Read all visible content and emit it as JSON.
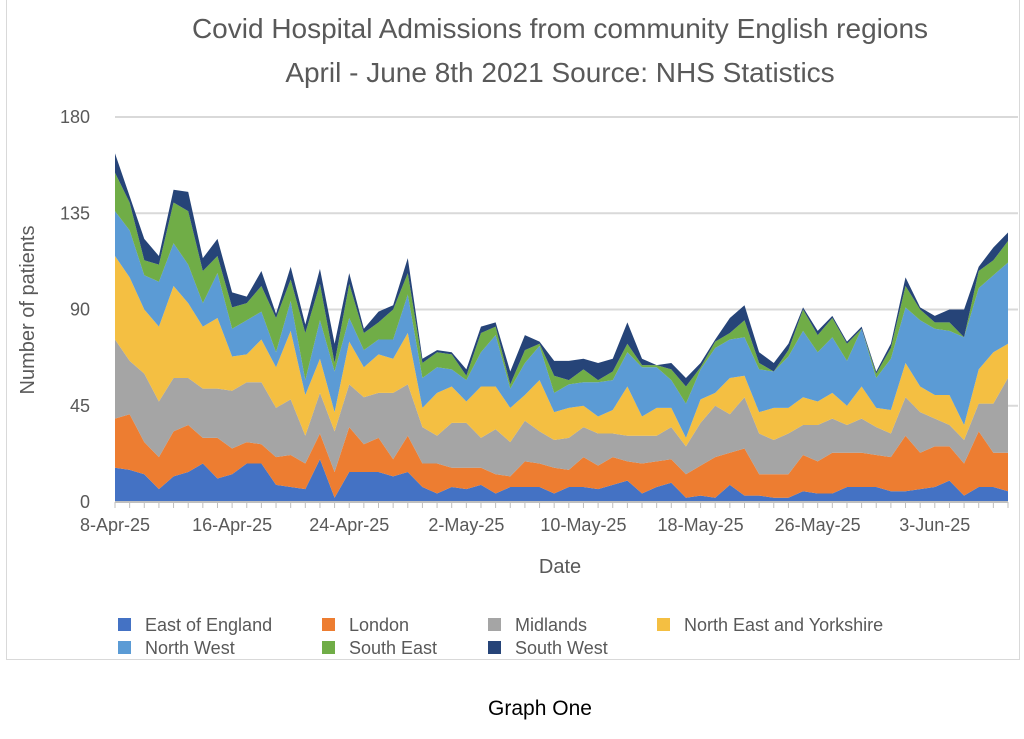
{
  "chart_data": {
    "type": "area",
    "stacked": true,
    "title": [
      "Covid Hospital Admissions from community English regions",
      "April - June 8th 2021 Source: NHS Statistics"
    ],
    "xlabel": "Date",
    "ylabel": "Number of patients",
    "ylim": [
      0,
      180
    ],
    "yticks": [
      0,
      45,
      90,
      135,
      180
    ],
    "grid": true,
    "legend_position": "bottom",
    "x_start": "8-Apr-25",
    "n_points": 62,
    "xtick_labels": [
      "8-Apr-25",
      "16-Apr-25",
      "24-Apr-25",
      "2-May-25",
      "10-May-25",
      "18-May-25",
      "26-May-25",
      "3-Jun-25"
    ],
    "xtick_every": 8,
    "series": [
      {
        "name": "East of England",
        "color": "#4472C4",
        "values": [
          16,
          15,
          13,
          6,
          12,
          14,
          18,
          11,
          13,
          18,
          18,
          8,
          7,
          6,
          20,
          2,
          14,
          14,
          14,
          12,
          14,
          7,
          4,
          7,
          6,
          8,
          4,
          7,
          7,
          7,
          4,
          7,
          7,
          6,
          8,
          10,
          4,
          7,
          9,
          2,
          3,
          2,
          8,
          3,
          3,
          2,
          2,
          5,
          4,
          4,
          7,
          7,
          7,
          5,
          5,
          6,
          7,
          10,
          3,
          7,
          7,
          5
        ]
      },
      {
        "name": "London",
        "color": "#ED7D31",
        "values": [
          23,
          26,
          15,
          15,
          21,
          22,
          12,
          19,
          12,
          10,
          9,
          13,
          15,
          12,
          12,
          12,
          21,
          13,
          16,
          8,
          17,
          11,
          14,
          9,
          10,
          8,
          9,
          5,
          12,
          11,
          12,
          8,
          14,
          11,
          13,
          9,
          14,
          12,
          11,
          11,
          14,
          19,
          15,
          22,
          10,
          11,
          11,
          17,
          15,
          19,
          16,
          16,
          15,
          16,
          26,
          17,
          19,
          16,
          15,
          26,
          16,
          18
        ]
      },
      {
        "name": "Midlands",
        "color": "#A5A5A5",
        "values": [
          37,
          25,
          32,
          26,
          25,
          22,
          23,
          23,
          27,
          28,
          29,
          23,
          26,
          13,
          19,
          19,
          20,
          22,
          21,
          31,
          24,
          17,
          13,
          21,
          21,
          14,
          21,
          16,
          19,
          15,
          13,
          15,
          14,
          15,
          11,
          12,
          13,
          12,
          15,
          13,
          20,
          24,
          18,
          24,
          19,
          16,
          19,
          14,
          17,
          16,
          13,
          16,
          13,
          11,
          18,
          19,
          13,
          10,
          11,
          13,
          23,
          35
        ]
      },
      {
        "name": "North East and Yorkshire",
        "color": "#F4BF42",
        "values": [
          39,
          39,
          30,
          35,
          43,
          35,
          29,
          33,
          16,
          13,
          20,
          19,
          32,
          19,
          16,
          9,
          20,
          14,
          18,
          16,
          24,
          9,
          20,
          17,
          10,
          24,
          20,
          16,
          12,
          24,
          13,
          14,
          10,
          8,
          11,
          23,
          9,
          13,
          9,
          4,
          11,
          6,
          17,
          10,
          10,
          15,
          12,
          13,
          11,
          12,
          9,
          15,
          9,
          11,
          16,
          12,
          11,
          14,
          7,
          16,
          24,
          16
        ]
      },
      {
        "name": "North West",
        "color": "#5B9BD5",
        "values": [
          21,
          22,
          16,
          21,
          20,
          18,
          11,
          21,
          13,
          16,
          13,
          7,
          14,
          7,
          18,
          19,
          11,
          8,
          7,
          9,
          18,
          14,
          12,
          8,
          10,
          16,
          24,
          9,
          15,
          16,
          9,
          11,
          11,
          16,
          14,
          16,
          23,
          19,
          13,
          16,
          14,
          21,
          18,
          18,
          20,
          17,
          24,
          31,
          23,
          26,
          21,
          27,
          14,
          24,
          26,
          31,
          31,
          30,
          41,
          38,
          36,
          38
        ]
      },
      {
        "name": "South East",
        "color": "#70AD47",
        "values": [
          18,
          13,
          7,
          8,
          19,
          25,
          15,
          8,
          10,
          8,
          12,
          16,
          10,
          22,
          17,
          4,
          16,
          8,
          8,
          14,
          10,
          7,
          7,
          7,
          2,
          9,
          4,
          2,
          6,
          1,
          8,
          2,
          6,
          1,
          4,
          4,
          1,
          1,
          5,
          8,
          1,
          3,
          3,
          8,
          3,
          0,
          3,
          10,
          8,
          9,
          8,
          0,
          2,
          5,
          10,
          5,
          3,
          4,
          0,
          8,
          7,
          10
        ]
      },
      {
        "name": "South West",
        "color": "#264478",
        "values": [
          9,
          3,
          10,
          4,
          6,
          9,
          6,
          8,
          7,
          3,
          7,
          2,
          6,
          4,
          7,
          9,
          5,
          2,
          5,
          2,
          7,
          2,
          1,
          1,
          3,
          3,
          2,
          6,
          7,
          1,
          7,
          9,
          5,
          8,
          6,
          10,
          3,
          0,
          3,
          4,
          2,
          1,
          7,
          7,
          5,
          4,
          3,
          1,
          2,
          1,
          1,
          1,
          1,
          2,
          4,
          1,
          3,
          6,
          13,
          2,
          6,
          4
        ]
      }
    ]
  },
  "caption": "Graph One"
}
